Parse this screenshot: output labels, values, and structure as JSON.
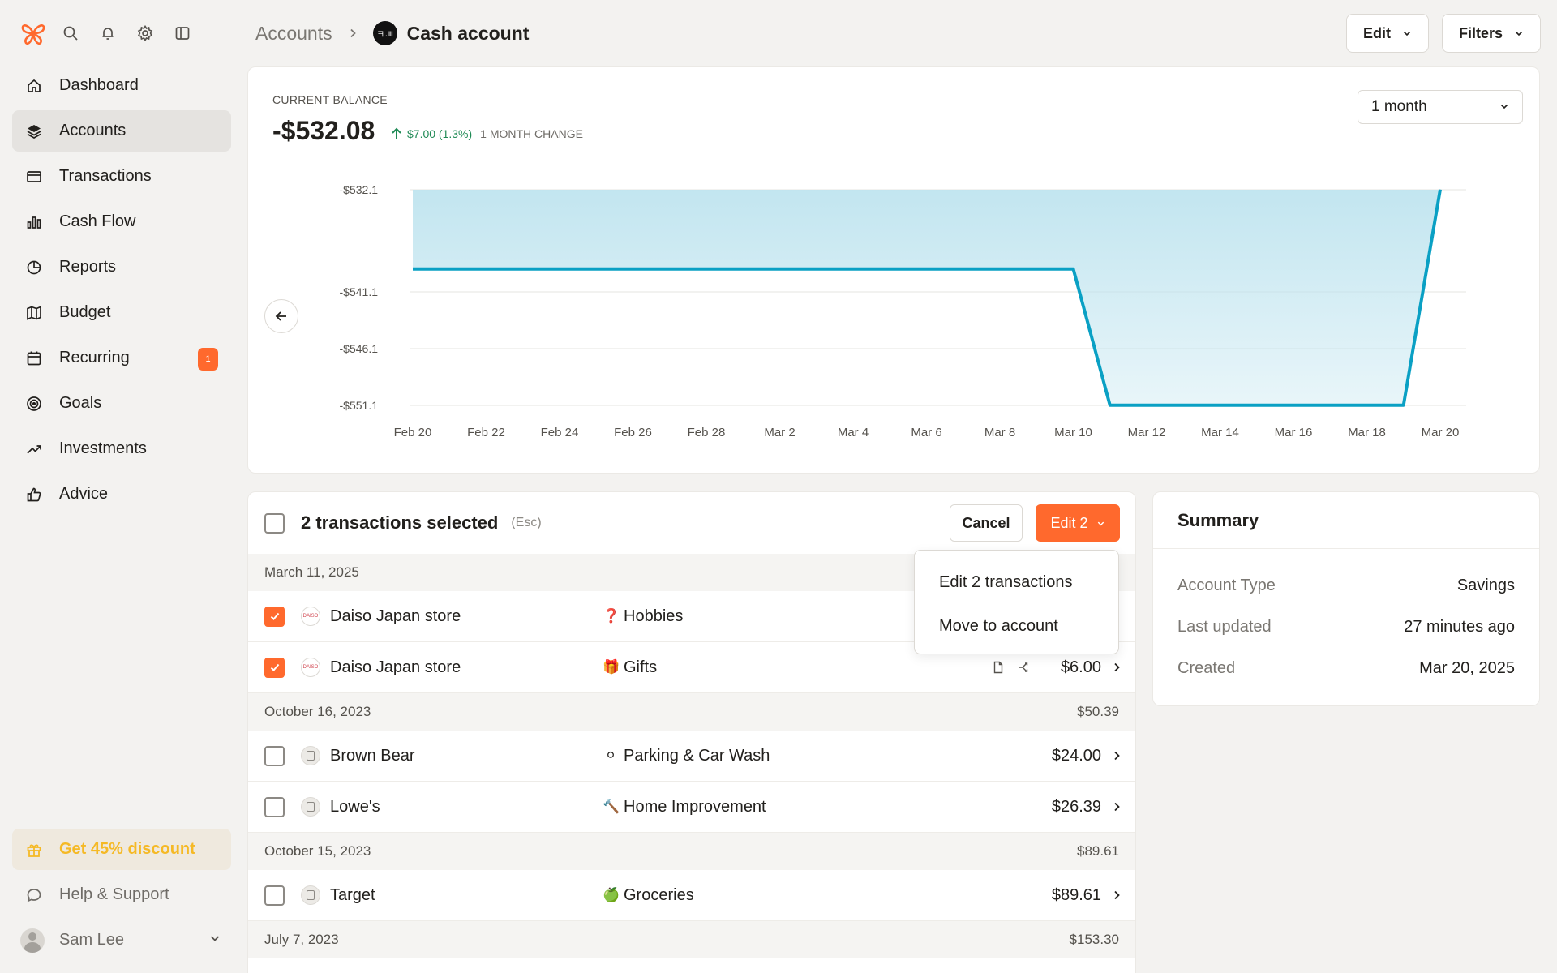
{
  "sidebar": {
    "nav": [
      {
        "label": "Dashboard",
        "icon": "home-icon"
      },
      {
        "label": "Accounts",
        "icon": "layers-icon",
        "active": true
      },
      {
        "label": "Transactions",
        "icon": "credit-card-icon"
      },
      {
        "label": "Cash Flow",
        "icon": "bar-chart-icon"
      },
      {
        "label": "Reports",
        "icon": "pie-chart-icon"
      },
      {
        "label": "Budget",
        "icon": "map-icon"
      },
      {
        "label": "Recurring",
        "icon": "calendar-icon",
        "badge": "1"
      },
      {
        "label": "Goals",
        "icon": "target-icon"
      },
      {
        "label": "Investments",
        "icon": "trending-up-icon"
      },
      {
        "label": "Advice",
        "icon": "thumbs-up-icon"
      }
    ],
    "promo": "Get 45% discount",
    "help": "Help & Support",
    "user": "Sam Lee"
  },
  "header": {
    "breadcrumb_root": "Accounts",
    "account_logo_text": "ヨ.Ш",
    "title": "Cash account",
    "edit_label": "Edit",
    "filters_label": "Filters"
  },
  "balance": {
    "label": "CURRENT BALANCE",
    "value": "-$532.08",
    "change": "$7.00 (1.3%)",
    "change_label": "1 MONTH CHANGE",
    "period": "1 month"
  },
  "chart_data": {
    "type": "area",
    "x_ticks": [
      "Feb 20",
      "Feb 22",
      "Feb 24",
      "Feb 26",
      "Feb 28",
      "Mar 2",
      "Mar 4",
      "Mar 6",
      "Mar 8",
      "Mar 10",
      "Mar 12",
      "Mar 14",
      "Mar 16",
      "Mar 18",
      "Mar 20"
    ],
    "y_ticks": [
      -532.1,
      -541.1,
      -546.1,
      -551.1
    ],
    "y_tick_labels": [
      "-$532.1",
      "-$541.1",
      "-$546.1",
      "-$551.1"
    ],
    "ylim": [
      -551.1,
      -532.1
    ],
    "points": [
      {
        "x": "Feb 20",
        "y": -539.08
      },
      {
        "x": "Mar 10",
        "y": -539.08
      },
      {
        "x": "Mar 11",
        "y": -551.08
      },
      {
        "x": "Mar 19",
        "y": -551.08
      },
      {
        "x": "Mar 20",
        "y": -532.08
      }
    ],
    "line_color": "#0aa0c4",
    "fill_color": "#bfe4ef"
  },
  "transactions": {
    "selected_title": "2 transactions selected",
    "esc_hint": "(Esc)",
    "cancel_label": "Cancel",
    "edit_label": "Edit 2",
    "groups": [
      {
        "date": "March 11, 2025",
        "total": "",
        "rows": [
          {
            "merchant": "Daiso Japan store",
            "logo": "DAISO",
            "category_emoji": "❓",
            "category": "Hobbies",
            "amount": "",
            "checked": true
          },
          {
            "merchant": "Daiso Japan store",
            "logo": "DAISO",
            "category_emoji": "🎁",
            "category": "Gifts",
            "amount": "$6.00",
            "checked": true
          }
        ]
      },
      {
        "date": "October 16, 2023",
        "total": "$50.39",
        "rows": [
          {
            "merchant": "Brown Bear",
            "category_emoji": "⚪",
            "category": "Parking & Car Wash",
            "amount": "$24.00",
            "checked": false
          },
          {
            "merchant": "Lowe's",
            "category_emoji": "🔨",
            "category": "Home Improvement",
            "amount": "$26.39",
            "checked": false
          }
        ]
      },
      {
        "date": "October 15, 2023",
        "total": "$89.61",
        "rows": [
          {
            "merchant": "Target",
            "category_emoji": "🍏",
            "category": "Groceries",
            "amount": "$89.61",
            "checked": false
          }
        ]
      },
      {
        "date": "July 7, 2023",
        "total": "$153.30",
        "rows": []
      }
    ]
  },
  "menu": {
    "items": [
      "Edit 2 transactions",
      "Move to account"
    ]
  },
  "summary": {
    "title": "Summary",
    "rows": [
      {
        "key": "Account Type",
        "value": "Savings"
      },
      {
        "key": "Last updated",
        "value": "27 minutes ago"
      },
      {
        "key": "Created",
        "value": "Mar 20, 2025"
      }
    ]
  },
  "colors": {
    "accent": "#ff692d",
    "positive": "#1f8a55",
    "promo": "#f5b925"
  }
}
